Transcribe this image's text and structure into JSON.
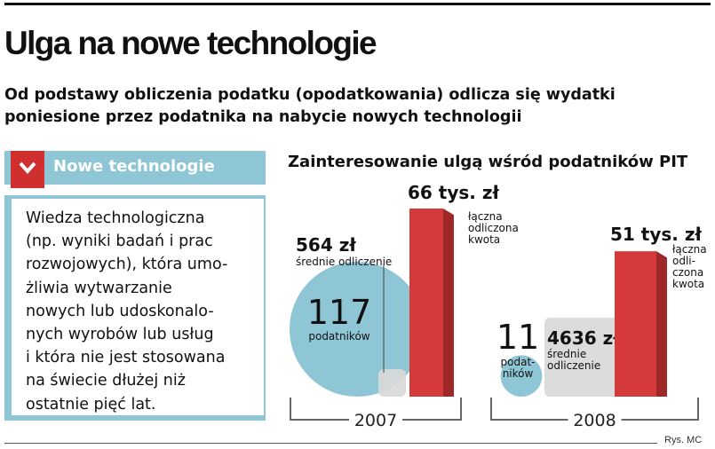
{
  "title": "Ulga na nowe technologie",
  "subtitle": "Od podstawy obliczenia podatku (opodatkowania) odlicza się wydatki poniesione przez podatnika na nabycie nowych technologii",
  "info_box": {
    "icon": "chevron-down-icon",
    "title": "Nowe technologie",
    "lines": [
      "Wiedza technologiczna",
      "(np. wyniki badań i prac",
      "rozwojowych), która umo-",
      "żliwia wytwarzanie",
      "nowych lub udoskonalo-",
      "nych wyrobów lub usług",
      "i która nie jest stosowana",
      "na świecie dłużej niż",
      "ostatnie pięć lat."
    ]
  },
  "colors": {
    "accent_red": "#cf2f2f",
    "bar_red": "#d43a3a",
    "bar_side": "#9e2727",
    "bubble_blue": "#8fc6d6",
    "box_grey": "#d9d9d9"
  },
  "chart_data": {
    "type": "bar",
    "title": "Zainteresowanie ulgą wśród podatników PIT",
    "years": [
      {
        "year": "2007",
        "taxpayers": 117,
        "taxpayers_label": "podatników",
        "average_deduction": 564,
        "average_deduction_label": "564 zł",
        "average_deduction_caption": "średnie odliczenie",
        "total_deduction": 66,
        "total_deduction_label": "66 tys. zł",
        "total_caption": [
          "łączna",
          "odliczona",
          "kwota"
        ]
      },
      {
        "year": "2008",
        "taxpayers": 11,
        "taxpayers_label": "podat- ników",
        "taxpayers_label_lines": [
          "podat-",
          "ników"
        ],
        "average_deduction": 4636,
        "average_deduction_label": "4636 zł",
        "average_deduction_caption": "średnie odliczenie",
        "average_deduction_caption_lines": [
          "średnie",
          "odliczenie"
        ],
        "total_deduction": 51,
        "total_deduction_label": "51 tys. zł",
        "total_caption": [
          "łączna",
          "odli-",
          "czona",
          "kwota"
        ]
      }
    ]
  },
  "credit": "Rys. MC"
}
